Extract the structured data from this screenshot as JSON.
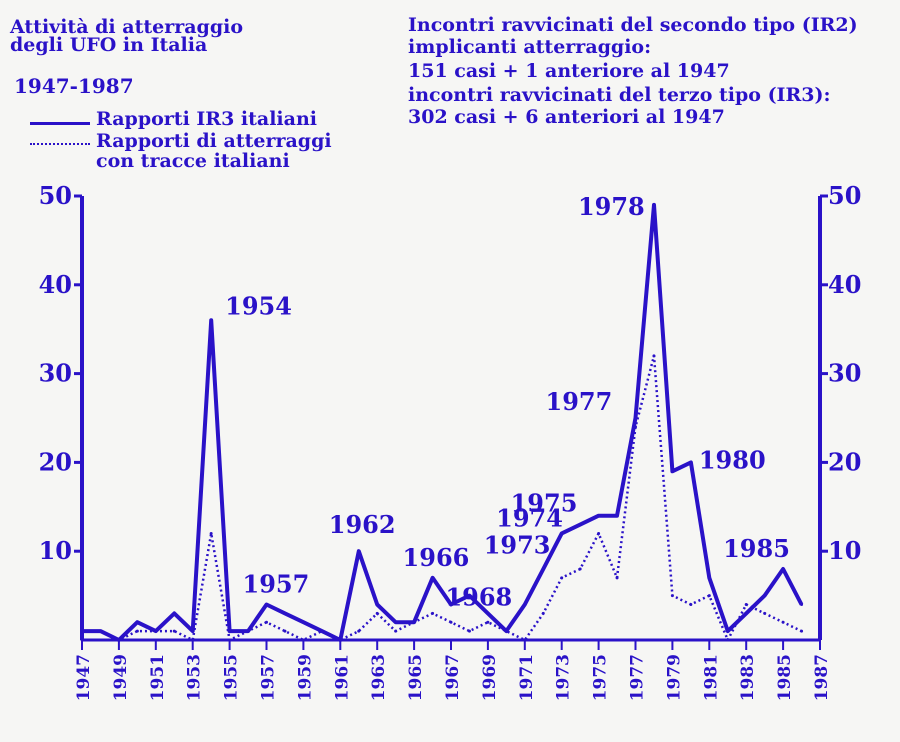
{
  "title_lines": [
    "Attività di atterraggio",
    "degli UFO in Italia"
  ],
  "years_range": "1947-1987",
  "legend": {
    "solid_label": "Rapporti IR3 italiani",
    "dotted_label_lines": [
      "Rapporti di atterraggi",
      "con tracce italiani"
    ]
  },
  "right_text": [
    "Incontri ravvicinati del secondo tipo (IR2)",
    "implicanti atterraggio:",
    "151 casi + 1 anteriore al 1947",
    "incontri ravvicinati del terzo tipo (IR3):",
    "302 casi + 6 anteriori al 1947"
  ],
  "colors": {
    "ink": "#2a12c8"
  },
  "chart_data": {
    "type": "line",
    "xlim": [
      1947,
      1987
    ],
    "ylim": [
      0,
      50
    ],
    "y_ticks": [
      10,
      20,
      30,
      40,
      50
    ],
    "x_ticks": [
      "1947",
      "1949",
      "1951",
      "1953",
      "1955",
      "1957",
      "1959",
      "1961",
      "1963",
      "1965",
      "1967",
      "1969",
      "1971",
      "1973",
      "1975",
      "1977",
      "1979",
      "1981",
      "1983",
      "1985",
      "1987"
    ],
    "series": [
      {
        "name": "Rapporti IR3 italiani",
        "style": "solid",
        "x": [
          1947,
          1948,
          1949,
          1950,
          1951,
          1952,
          1953,
          1954,
          1955,
          1956,
          1957,
          1958,
          1959,
          1960,
          1961,
          1962,
          1963,
          1964,
          1965,
          1966,
          1967,
          1968,
          1969,
          1970,
          1971,
          1972,
          1973,
          1974,
          1975,
          1976,
          1977,
          1978,
          1979,
          1980,
          1981,
          1982,
          1983,
          1984,
          1985,
          1986
        ],
        "values": [
          1,
          1,
          0,
          2,
          1,
          3,
          1,
          36,
          1,
          1,
          4,
          3,
          2,
          1,
          0,
          10,
          4,
          2,
          2,
          7,
          4,
          5,
          3,
          1,
          4,
          8,
          12,
          13,
          14,
          14,
          25,
          49,
          19,
          20,
          7,
          1,
          3,
          5,
          8,
          4
        ]
      },
      {
        "name": "Rapporti di atterraggi con tracce italiani",
        "style": "dotted",
        "x": [
          1947,
          1948,
          1949,
          1950,
          1951,
          1952,
          1953,
          1954,
          1955,
          1956,
          1957,
          1958,
          1959,
          1960,
          1961,
          1962,
          1963,
          1964,
          1965,
          1966,
          1967,
          1968,
          1969,
          1970,
          1971,
          1972,
          1973,
          1974,
          1975,
          1976,
          1977,
          1978,
          1979,
          1980,
          1981,
          1982,
          1983,
          1984,
          1985,
          1986
        ],
        "values": [
          0,
          0,
          0,
          1,
          1,
          1,
          0,
          12,
          0,
          1,
          2,
          1,
          0,
          1,
          0,
          1,
          3,
          1,
          2,
          3,
          2,
          1,
          2,
          1,
          0,
          3,
          7,
          8,
          12,
          7,
          24,
          32,
          5,
          4,
          5,
          0,
          4,
          3,
          2,
          1
        ]
      }
    ],
    "annotations": [
      {
        "label": "1954",
        "x": 1954,
        "y": 36
      },
      {
        "label": "1957",
        "x": 1957,
        "y": 4
      },
      {
        "label": "1962",
        "x": 1962,
        "y": 10
      },
      {
        "label": "1966",
        "x": 1966,
        "y": 7
      },
      {
        "label": "1968",
        "x": 1968,
        "y": 5
      },
      {
        "label": "1973",
        "x": 1973,
        "y": 12
      },
      {
        "label": "1974",
        "x": 1974,
        "y": 13
      },
      {
        "label": "1975",
        "x": 1975,
        "y": 14
      },
      {
        "label": "1977",
        "x": 1977,
        "y": 25
      },
      {
        "label": "1978",
        "x": 1978,
        "y": 49
      },
      {
        "label": "1980",
        "x": 1980,
        "y": 20
      },
      {
        "label": "1985",
        "x": 1985,
        "y": 8
      }
    ]
  }
}
